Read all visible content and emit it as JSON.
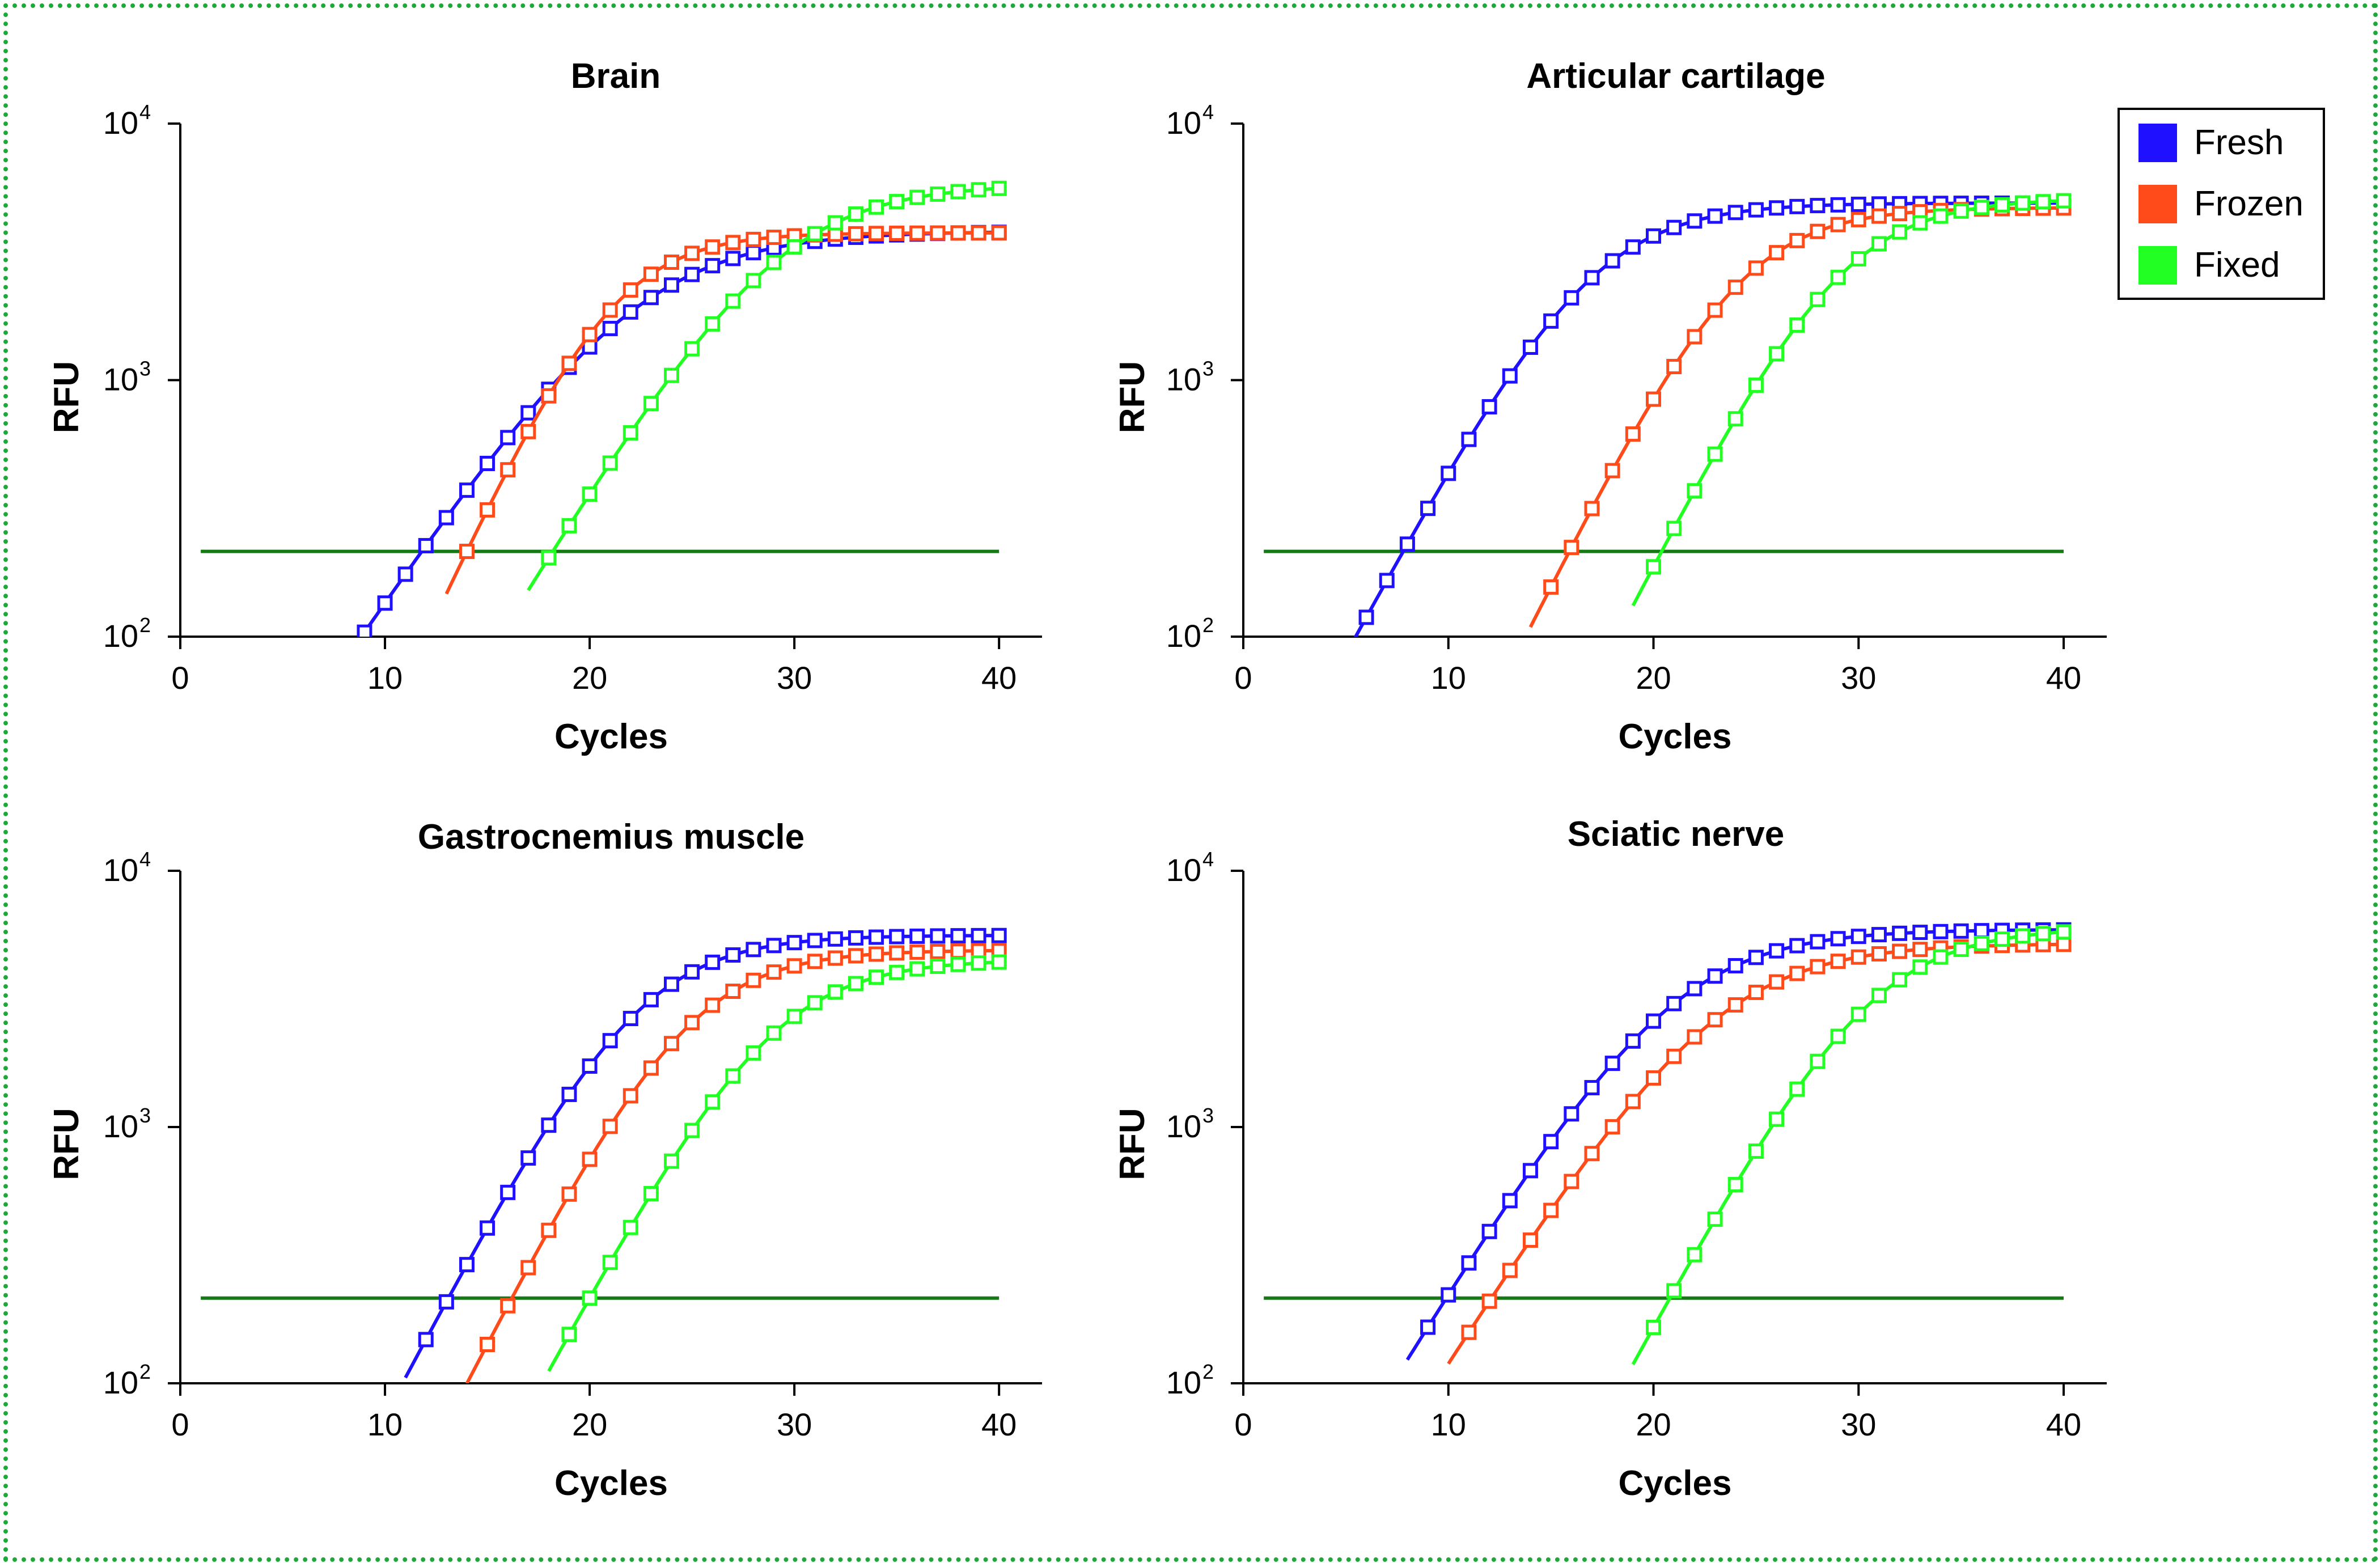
{
  "colors": {
    "Fresh": "#1f10ff",
    "Frozen": "#ff4a1a",
    "Fixed": "#22ff22",
    "threshold": "#157a15",
    "frame": "#1fa83a"
  },
  "legend": {
    "items": [
      {
        "label": "Fresh",
        "color": "#1f10ff"
      },
      {
        "label": "Frozen",
        "color": "#ff4a1a"
      },
      {
        "label": "Fixed",
        "color": "#22ff22"
      }
    ]
  },
  "chart_data": [
    {
      "type": "line",
      "title": "Brain",
      "xlabel": "Cycles",
      "ylabel": "RFU",
      "yscale": "log",
      "xlim": [
        0,
        40
      ],
      "ylim": [
        100,
        10000
      ],
      "xticks": [
        "0",
        "10",
        "20",
        "30",
        "40"
      ],
      "yticks": [
        {
          "base": "10",
          "exp": "2"
        },
        {
          "base": "10",
          "exp": "3"
        },
        {
          "base": "10",
          "exp": "4"
        }
      ],
      "threshold": 215,
      "threshold_range": [
        1,
        40
      ],
      "series": [
        {
          "name": "Fresh",
          "max": 3800,
          "ct": 11.8,
          "k": 0.27,
          "start": 7
        },
        {
          "name": "Frozen",
          "max": 3750,
          "ct": 14.0,
          "k": 0.4,
          "start": 14
        },
        {
          "name": "Fixed",
          "max": 5800,
          "ct": 18.2,
          "k": 0.3,
          "start": 18
        }
      ]
    },
    {
      "type": "line",
      "title": "Articular cartilage",
      "xlabel": "Cycles",
      "ylabel": "RFU",
      "yscale": "log",
      "xlim": [
        0,
        40
      ],
      "ylim": [
        100,
        10000
      ],
      "xticks": [
        "0",
        "10",
        "20",
        "30",
        "40"
      ],
      "yticks": [
        {
          "base": "10",
          "exp": "2"
        },
        {
          "base": "10",
          "exp": "3"
        },
        {
          "base": "10",
          "exp": "4"
        }
      ],
      "threshold": 215,
      "threshold_range": [
        1,
        40
      ],
      "series": [
        {
          "name": "Fresh",
          "max": 4900,
          "ct": 7.8,
          "k": 0.34,
          "start": 6
        },
        {
          "name": "Frozen",
          "max": 4700,
          "ct": 15.9,
          "k": 0.37,
          "start": 15
        },
        {
          "name": "Fixed",
          "max": 5100,
          "ct": 20.4,
          "k": 0.36,
          "start": 20
        }
      ]
    },
    {
      "type": "line",
      "title": "Gastrocnemius muscle",
      "xlabel": "Cycles",
      "ylabel": "RFU",
      "yscale": "log",
      "xlim": [
        0,
        40
      ],
      "ylim": [
        100,
        10000
      ],
      "xticks": [
        "0",
        "10",
        "20",
        "30",
        "40"
      ],
      "yticks": [
        {
          "base": "10",
          "exp": "2"
        },
        {
          "base": "10",
          "exp": "3"
        },
        {
          "base": "10",
          "exp": "4"
        }
      ],
      "threshold": 215,
      "threshold_range": [
        1,
        40
      ],
      "series": [
        {
          "name": "Fresh",
          "max": 5600,
          "ct": 13.1,
          "k": 0.35,
          "start": 12
        },
        {
          "name": "Frozen",
          "max": 4900,
          "ct": 16.2,
          "k": 0.36,
          "start": 15
        },
        {
          "name": "Fixed",
          "max": 4500,
          "ct": 20.0,
          "k": 0.34,
          "start": 19
        }
      ]
    },
    {
      "type": "line",
      "title": "Sciatic nerve",
      "xlabel": "Cycles",
      "ylabel": "RFU",
      "yscale": "log",
      "xlim": [
        0,
        40
      ],
      "ylim": [
        100,
        10000
      ],
      "xticks": [
        "0",
        "10",
        "20",
        "30",
        "40"
      ],
      "yticks": [
        {
          "base": "10",
          "exp": "2"
        },
        {
          "base": "10",
          "exp": "3"
        },
        {
          "base": "10",
          "exp": "4"
        }
      ],
      "threshold": 215,
      "threshold_range": [
        1,
        40
      ],
      "series": [
        {
          "name": "Fresh",
          "max": 5900,
          "ct": 9.9,
          "k": 0.3,
          "start": 9
        },
        {
          "name": "Frozen",
          "max": 5200,
          "ct": 12.1,
          "k": 0.29,
          "start": 11
        },
        {
          "name": "Fixed",
          "max": 6000,
          "ct": 20.8,
          "k": 0.34,
          "start": 20
        }
      ]
    }
  ]
}
